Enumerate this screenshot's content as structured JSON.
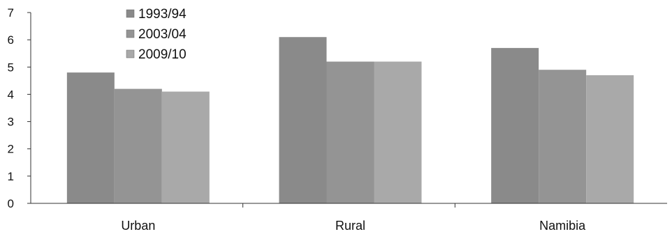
{
  "chart_data": {
    "type": "bar",
    "categories": [
      "Urban",
      "Rural",
      "Namibia"
    ],
    "series": [
      {
        "name": "1993/94",
        "values": [
          4.8,
          6.1,
          5.7
        ],
        "color": "#8a8a8a"
      },
      {
        "name": "2003/04",
        "values": [
          4.2,
          5.2,
          4.9
        ],
        "color": "#949494"
      },
      {
        "name": "2009/10",
        "values": [
          4.1,
          5.2,
          4.7
        ],
        "color": "#a9a9a9"
      }
    ],
    "title": "",
    "xlabel": "",
    "ylabel": "",
    "ylim": [
      0,
      7
    ],
    "yticks": [
      "0",
      "1",
      "2",
      "3",
      "4",
      "5",
      "6",
      "7"
    ],
    "grid": false,
    "legend_position": "top-left"
  }
}
